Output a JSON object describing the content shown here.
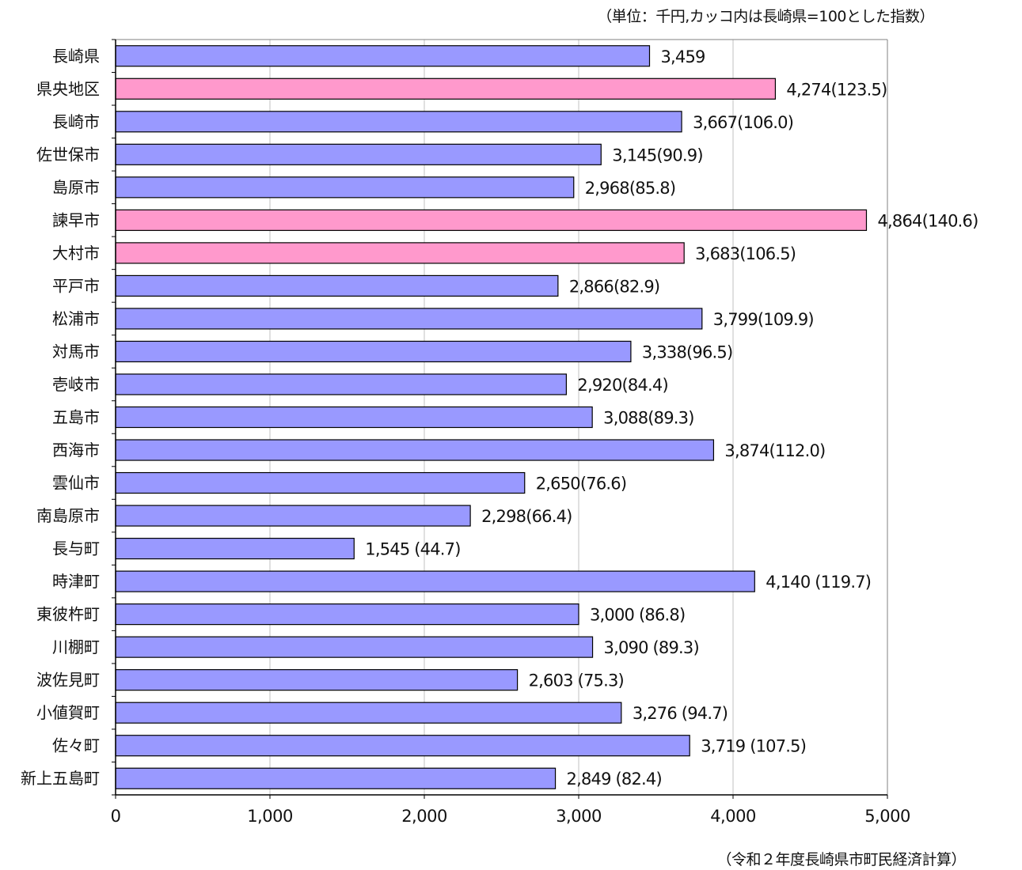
{
  "notes": {
    "unit": "（単位：千円,カッコ内は長崎県=100とした指数）",
    "source": "（令和２年度長崎県市町民経済計算）"
  },
  "colors": {
    "bar_default": "#9999ff",
    "bar_highlight": "#ff99cc",
    "grid": "#c0c0c0",
    "axis": "#000000"
  },
  "chart_data": {
    "type": "bar",
    "orientation": "horizontal",
    "xlim": [
      0,
      5000
    ],
    "x_ticks": [
      0,
      1000,
      2000,
      3000,
      4000,
      5000
    ],
    "x_tick_labels": [
      "0",
      "1,000",
      "2,000",
      "3,000",
      "4,000",
      "5,000"
    ],
    "grid": true,
    "title": "",
    "xlabel": "",
    "ylabel": "",
    "categories": [
      "長崎県",
      "県央地区",
      "長崎市",
      "佐世保市",
      "島原市",
      "諫早市",
      "大村市",
      "平戸市",
      "松浦市",
      "対馬市",
      "壱岐市",
      "五島市",
      "西海市",
      "雲仙市",
      "南島原市",
      "長与町",
      "時津町",
      "東彼杵町",
      "川棚町",
      "波佐見町",
      "小値賀町",
      "佐々町",
      "新上五島町"
    ],
    "values": [
      3459,
      4274,
      3667,
      3145,
      2968,
      4864,
      3683,
      2866,
      3799,
      3338,
      2920,
      3088,
      3874,
      2650,
      2298,
      1545,
      4140,
      3000,
      3090,
      2603,
      3276,
      3719,
      2849
    ],
    "data_labels": [
      "3,459",
      "4,274(123.5)",
      "3,667(106.0)",
      "3,145(90.9)",
      "2,968(85.8)",
      "4,864(140.6)",
      "3,683(106.5)",
      "2,866(82.9)",
      "3,799(109.9)",
      "3,338(96.5)",
      "2,920(84.4)",
      "3,088(89.3)",
      "3,874(112.0)",
      "2,650(76.6)",
      "2,298(66.4)",
      "1,545 (44.7)",
      "4,140 (119.7)",
      "3,000 (86.8)",
      "3,090 (89.3)",
      "2,603 (75.3)",
      "3,276 (94.7)",
      "3,719 (107.5)",
      "2,849 (82.4)"
    ],
    "highlighted": [
      false,
      true,
      false,
      false,
      false,
      true,
      true,
      false,
      false,
      false,
      false,
      false,
      false,
      false,
      false,
      false,
      false,
      false,
      false,
      false,
      false,
      false,
      false
    ]
  }
}
